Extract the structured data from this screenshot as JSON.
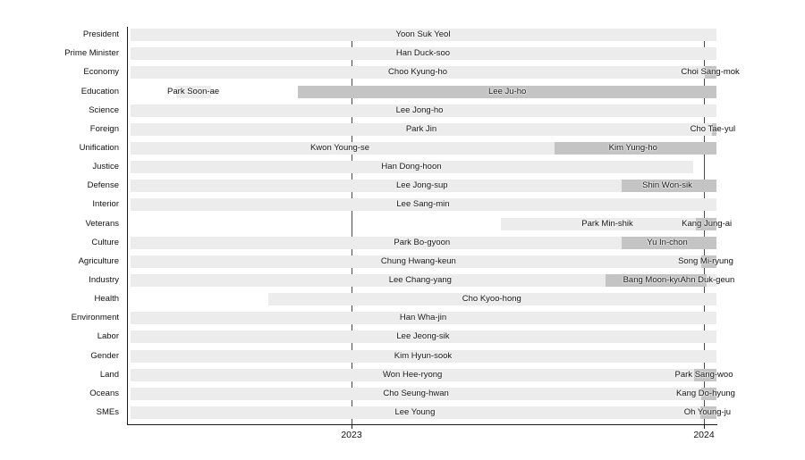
{
  "chart_data": {
    "type": "bar",
    "variant": "gantt-timeline",
    "title": "",
    "xlabel": "",
    "ylabel": "",
    "x_axis": {
      "range": [
        2022.355,
        2024.05
      ],
      "ticks": [
        {
          "label": "2023",
          "value": 2023
        },
        {
          "label": "2024",
          "value": 2024
        }
      ],
      "gridlines": [
        2023,
        2024
      ],
      "grid": "solid-behind-bars"
    },
    "legend": null,
    "colors": {
      "bar_light": "#ececec",
      "bar_dark": "#c4c4c4",
      "grid": "#4a4a4a",
      "axis": "#1a1a1a",
      "text": "#111111",
      "background": "#ffffff"
    },
    "rows": [
      {
        "category": "President",
        "segments": [
          {
            "name": "Yoon Suk Yeol",
            "start": 2022.373,
            "end": 2024.035,
            "shade": "light",
            "label_at": 2023.203
          }
        ]
      },
      {
        "category": "Prime Minister",
        "segments": [
          {
            "name": "Han Duck-soo",
            "start": 2022.373,
            "end": 2024.035,
            "shade": "light",
            "label_at": 2023.203
          }
        ]
      },
      {
        "category": "Economy",
        "segments": [
          {
            "name": "Choo Kyung-ho",
            "start": 2022.373,
            "end": 2024.003,
            "shade": "light",
            "label_at": 2023.188
          },
          {
            "name": "Choi Sang-mok",
            "start": 2024.003,
            "end": 2024.035,
            "shade": "dark",
            "label_at": 2024.018
          }
        ]
      },
      {
        "category": "Education",
        "segments": [
          {
            "name": "Park Soon-ae",
            "start": 2022.503,
            "end": 2022.601,
            "shade": "light",
            "label_at": 2022.551
          },
          {
            "name": "Lee Ju-ho",
            "start": 2022.848,
            "end": 2024.035,
            "shade": "dark",
            "label_at": 2023.442
          }
        ]
      },
      {
        "category": "Science",
        "segments": [
          {
            "name": "Lee Jong-ho",
            "start": 2022.373,
            "end": 2024.035,
            "shade": "light",
            "label_at": 2023.193
          }
        ]
      },
      {
        "category": "Foreign",
        "segments": [
          {
            "name": "Park Jin",
            "start": 2022.373,
            "end": 2024.023,
            "shade": "light",
            "label_at": 2023.198
          },
          {
            "name": "Cho Tae-yul",
            "start": 2024.023,
            "end": 2024.035,
            "shade": "dark",
            "label_at": 2024.025
          }
        ]
      },
      {
        "category": "Unification",
        "segments": [
          {
            "name": "Kwon Young-se",
            "start": 2022.373,
            "end": 2023.576,
            "shade": "light",
            "label_at": 2022.967
          },
          {
            "name": "Kim Yung-ho",
            "start": 2023.576,
            "end": 2024.035,
            "shade": "dark",
            "label_at": 2023.799
          }
        ]
      },
      {
        "category": "Justice",
        "segments": [
          {
            "name": "Han Dong-hoon",
            "start": 2022.373,
            "end": 2023.97,
            "shade": "light",
            "label_at": 2023.17
          }
        ]
      },
      {
        "category": "Defense",
        "segments": [
          {
            "name": "Lee Jong-sup",
            "start": 2022.373,
            "end": 2023.766,
            "shade": "light",
            "label_at": 2023.2
          },
          {
            "name": "Shin Won-sik",
            "start": 2023.766,
            "end": 2024.035,
            "shade": "dark",
            "label_at": 2023.896
          }
        ]
      },
      {
        "category": "Interior",
        "segments": [
          {
            "name": "Lee Sang-min",
            "start": 2022.373,
            "end": 2024.035,
            "shade": "light",
            "label_at": 2023.203
          }
        ]
      },
      {
        "category": "Veterans",
        "segments": [
          {
            "name": "Park Min-shik",
            "start": 2023.424,
            "end": 2023.977,
            "shade": "light",
            "label_at": 2023.726
          },
          {
            "name": "Kang Jung-ai",
            "start": 2023.977,
            "end": 2024.035,
            "shade": "dark",
            "label_at": 2024.008
          }
        ]
      },
      {
        "category": "Culture",
        "segments": [
          {
            "name": "Park Bo-gyoon",
            "start": 2022.373,
            "end": 2023.766,
            "shade": "light",
            "label_at": 2023.2
          },
          {
            "name": "Yu In-chon",
            "start": 2023.766,
            "end": 2024.035,
            "shade": "dark",
            "label_at": 2023.896
          }
        ]
      },
      {
        "category": "Agriculture",
        "segments": [
          {
            "name": "Chung Hwang-keun",
            "start": 2022.373,
            "end": 2023.992,
            "shade": "light",
            "label_at": 2023.19
          },
          {
            "name": "Song Mi-ryung",
            "start": 2023.992,
            "end": 2024.035,
            "shade": "dark",
            "label_at": 2024.005
          }
        ]
      },
      {
        "category": "Industry",
        "segments": [
          {
            "name": "Lee Chang-yang",
            "start": 2022.373,
            "end": 2023.721,
            "shade": "light",
            "label_at": 2023.195
          },
          {
            "name": "Bang Moon-kyu",
            "start": 2023.721,
            "end": 2024.008,
            "shade": "dark",
            "label_at": 2023.855
          },
          {
            "name": "Ahn Duk-geun",
            "start": 2024.008,
            "end": 2024.035,
            "shade": "light",
            "label_at": 2024.01
          }
        ]
      },
      {
        "category": "Health",
        "segments": [
          {
            "name": "Cho Kyoo-hong",
            "start": 2022.764,
            "end": 2024.035,
            "shade": "light",
            "label_at": 2023.398
          }
        ]
      },
      {
        "category": "Environment",
        "segments": [
          {
            "name": "Han Wha-jin",
            "start": 2022.373,
            "end": 2024.035,
            "shade": "light",
            "label_at": 2023.203
          }
        ]
      },
      {
        "category": "Labor",
        "segments": [
          {
            "name": "Lee Jeong-sik",
            "start": 2022.373,
            "end": 2024.035,
            "shade": "light",
            "label_at": 2023.203
          }
        ]
      },
      {
        "category": "Gender",
        "segments": [
          {
            "name": "Kim Hyun-sook",
            "start": 2022.373,
            "end": 2024.035,
            "shade": "light",
            "label_at": 2023.203
          }
        ]
      },
      {
        "category": "Land",
        "segments": [
          {
            "name": "Won Hee-ryong",
            "start": 2022.373,
            "end": 2023.972,
            "shade": "light",
            "label_at": 2023.173
          },
          {
            "name": "Park Sang-woo",
            "start": 2023.972,
            "end": 2024.035,
            "shade": "dark",
            "label_at": 2024.0
          }
        ]
      },
      {
        "category": "Oceans",
        "segments": [
          {
            "name": "Cho Seung-hwan",
            "start": 2022.373,
            "end": 2023.992,
            "shade": "light",
            "label_at": 2023.183
          },
          {
            "name": "Kang Do-hyung",
            "start": 2023.992,
            "end": 2024.035,
            "shade": "dark",
            "label_at": 2024.005
          }
        ]
      },
      {
        "category": "SMEs",
        "segments": [
          {
            "name": "Lee Young",
            "start": 2022.373,
            "end": 2023.99,
            "shade": "light",
            "label_at": 2023.18
          },
          {
            "name": "Oh Young-ju",
            "start": 2023.99,
            "end": 2024.035,
            "shade": "dark",
            "label_at": 2024.01
          }
        ]
      }
    ]
  }
}
